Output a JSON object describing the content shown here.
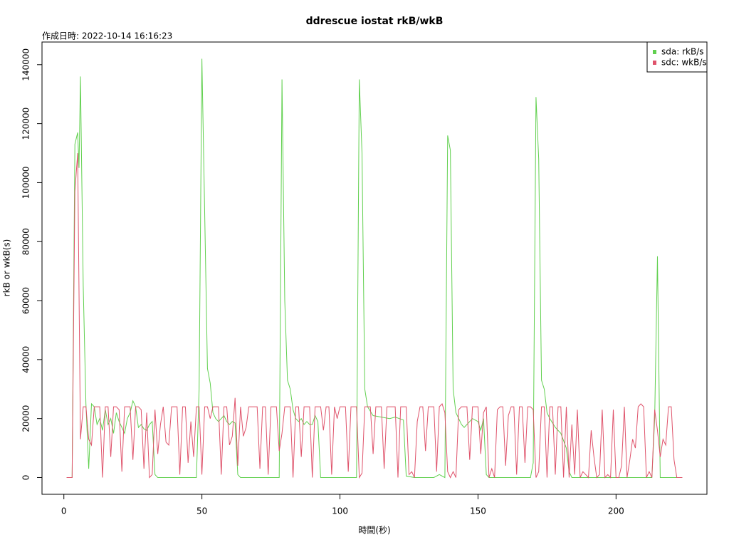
{
  "chart_data": {
    "type": "line",
    "title": "ddrescue iostat rkB/wkB",
    "subtitle": "作成日時: 2022-10-14 16:16:23",
    "x_label": "時間(秒)",
    "y_label": "rkB or wkB(s)",
    "xlim": [
      -7.92,
      232.92
    ],
    "ylim": [
      -5680,
      147680
    ],
    "xticks": [
      0,
      50,
      100,
      150,
      200
    ],
    "yticks": [
      0,
      20000,
      40000,
      60000,
      80000,
      100000,
      120000,
      140000
    ],
    "legend": "top-right",
    "series": [
      {
        "name": "sda: rkB/s",
        "color": "#61D04F",
        "x": [
          1,
          3,
          4,
          5,
          5.5,
          6,
          7,
          8,
          9,
          10,
          11,
          12,
          13,
          14,
          15,
          16,
          17,
          18,
          19,
          20,
          21,
          22,
          23,
          24,
          25,
          26,
          27,
          28,
          29,
          30,
          31,
          32,
          33,
          34,
          48,
          49,
          50,
          51,
          52,
          53,
          54,
          55,
          56,
          57,
          58,
          59,
          60,
          61,
          62,
          63,
          64,
          78,
          79,
          80,
          81,
          82,
          83,
          84,
          85,
          86,
          87,
          88,
          89,
          90,
          91,
          92,
          93,
          106,
          107,
          108,
          109,
          110,
          112,
          115,
          118,
          120,
          123,
          124,
          127,
          134,
          136,
          138,
          139,
          140,
          141,
          142,
          144,
          145,
          146,
          147,
          148,
          150,
          151,
          152,
          153,
          154,
          169,
          170,
          171,
          172,
          173,
          174,
          175,
          176,
          178,
          180,
          182,
          183,
          184,
          213,
          214,
          215,
          216,
          224
        ],
        "values": [
          0,
          0,
          113000,
          117000,
          105000,
          136000,
          65000,
          25000,
          3000,
          25000,
          24000,
          18000,
          20000,
          16000,
          23000,
          18000,
          20000,
          15000,
          22000,
          19000,
          17000,
          15000,
          20000,
          22000,
          26000,
          24000,
          17000,
          18000,
          16500,
          16000,
          18000,
          19000,
          1000,
          0,
          0,
          30000,
          142000,
          90000,
          37000,
          32000,
          22000,
          20000,
          19000,
          20000,
          21000,
          19000,
          18000,
          19000,
          18500,
          1000,
          0,
          0,
          135000,
          60000,
          33000,
          30000,
          23000,
          20000,
          19000,
          20000,
          18000,
          19000,
          18000,
          18000,
          21000,
          19000,
          0,
          0,
          135000,
          110000,
          30000,
          24000,
          21000,
          20500,
          20000,
          20500,
          19500,
          500,
          0,
          0,
          1000,
          0,
          116000,
          111000,
          30000,
          22000,
          18000,
          17000,
          18000,
          19000,
          20000,
          19000,
          16000,
          20000,
          1000,
          0,
          0,
          5000,
          129000,
          108000,
          33000,
          30000,
          22000,
          20000,
          17000,
          15000,
          10000,
          2000,
          0,
          0,
          20000,
          75000,
          0,
          0
        ]
      },
      {
        "name": "sdc: wkB/s",
        "color": "#DF536B",
        "x": [
          1,
          2,
          3,
          4,
          5,
          6,
          7,
          8,
          9,
          10,
          11,
          12,
          13,
          14,
          15,
          16,
          17,
          18,
          19,
          20,
          21,
          22,
          23,
          24,
          25,
          26,
          27,
          28,
          29,
          30,
          31,
          32,
          33,
          34,
          35,
          36,
          37,
          38,
          39,
          40,
          41,
          42,
          43,
          44,
          45,
          46,
          47,
          48,
          49,
          50,
          51,
          52,
          53,
          54,
          55,
          56,
          57,
          58,
          59,
          60,
          61,
          62,
          63,
          64,
          65,
          66,
          67,
          68,
          69,
          70,
          71,
          72,
          73,
          74,
          75,
          76,
          77,
          78,
          79,
          80,
          81,
          82,
          83,
          84,
          85,
          86,
          87,
          88,
          89,
          90,
          91,
          92,
          93,
          94,
          95,
          96,
          97,
          98,
          99,
          100,
          101,
          102,
          103,
          104,
          105,
          106,
          107,
          108,
          109,
          110,
          111,
          112,
          113,
          114,
          115,
          116,
          117,
          118,
          119,
          120,
          121,
          122,
          123,
          124,
          125,
          126,
          127,
          128,
          129,
          130,
          131,
          132,
          133,
          134,
          135,
          136,
          137,
          138,
          139,
          140,
          141,
          142,
          143,
          144,
          145,
          146,
          147,
          148,
          149,
          150,
          151,
          152,
          153,
          154,
          155,
          156,
          157,
          158,
          159,
          160,
          161,
          162,
          163,
          164,
          165,
          166,
          167,
          168,
          169,
          170,
          171,
          172,
          173,
          174,
          175,
          176,
          177,
          178,
          179,
          180,
          181,
          182,
          183,
          184,
          185,
          186,
          187,
          188,
          189,
          190,
          191,
          192,
          193,
          194,
          195,
          196,
          197,
          198,
          199,
          200,
          201,
          202,
          203,
          204,
          205,
          206,
          207,
          208,
          209,
          210,
          211,
          212,
          213,
          214,
          215,
          216,
          217,
          218,
          219,
          220,
          221,
          222,
          223,
          224
        ],
        "values": [
          0,
          0,
          0,
          97000,
          110000,
          13000,
          24000,
          24000,
          13000,
          11000,
          24000,
          24000,
          24000,
          0,
          24000,
          24000,
          7000,
          24000,
          24000,
          23000,
          2000,
          24000,
          24000,
          24000,
          6000,
          24000,
          24000,
          23000,
          3000,
          22000,
          0,
          1000,
          23000,
          8000,
          18000,
          24000,
          12000,
          11000,
          24000,
          24000,
          24000,
          1000,
          24000,
          24000,
          5000,
          19000,
          7000,
          24000,
          24000,
          1000,
          24000,
          24000,
          20000,
          24000,
          24000,
          24000,
          1000,
          24000,
          24000,
          11000,
          14000,
          27000,
          4000,
          24000,
          14000,
          17000,
          24000,
          24000,
          24000,
          24000,
          3000,
          24000,
          24000,
          1000,
          24000,
          24000,
          24000,
          9000,
          15000,
          24000,
          24000,
          24000,
          0,
          24000,
          24000,
          7000,
          24000,
          24000,
          24000,
          0,
          24000,
          24000,
          24000,
          16000,
          24000,
          24000,
          1000,
          24000,
          20000,
          24000,
          24000,
          24000,
          2000,
          24000,
          24000,
          24000,
          0,
          1500,
          24000,
          24000,
          24000,
          8000,
          24000,
          24000,
          24000,
          3000,
          24000,
          24000,
          24000,
          24000,
          0,
          24000,
          24000,
          24000,
          1000,
          2000,
          0,
          19000,
          24000,
          24000,
          9000,
          24000,
          24000,
          24000,
          2000,
          24000,
          25000,
          22000,
          2000,
          0,
          2000,
          0,
          23000,
          24000,
          24000,
          24000,
          6000,
          24000,
          24000,
          24000,
          8000,
          22000,
          24000,
          0,
          3000,
          0,
          23000,
          24000,
          24000,
          4000,
          21000,
          24000,
          24000,
          1000,
          24000,
          24000,
          5000,
          24000,
          24000,
          23000,
          0,
          2000,
          24000,
          24000,
          0,
          24000,
          24000,
          1000,
          24000,
          24000,
          0,
          24000,
          0,
          18000,
          1000,
          23000,
          0,
          2000,
          1000,
          0,
          16000,
          7000,
          0,
          1000,
          23000,
          0,
          1000,
          0,
          23000,
          0,
          0,
          4000,
          24000,
          0,
          6000,
          13000,
          10000,
          24000,
          25000,
          24000,
          0,
          2000,
          0,
          23000,
          16000,
          7000,
          13000,
          11000,
          24000,
          24000,
          6000,
          0,
          0,
          0
        ]
      }
    ]
  }
}
